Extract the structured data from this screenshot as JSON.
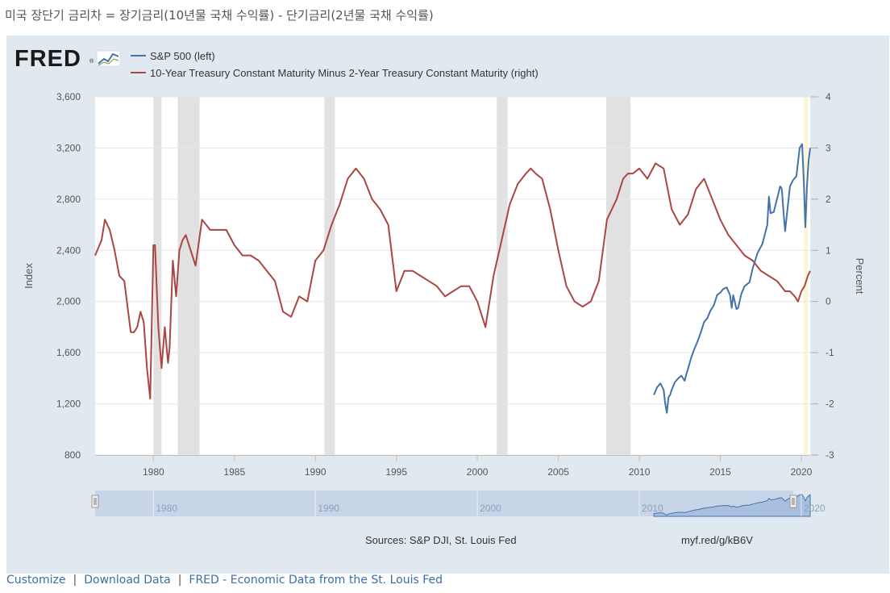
{
  "page": {
    "heading": "미국 장단기 금리차 = 장기금리(10년물 국채 수익률) - 단기금리(2년물 국채 수익률)"
  },
  "brand": {
    "logo_text": "FRED",
    "trademark": "®"
  },
  "colors": {
    "panel_bg": "#e1e9f0",
    "plot_bg": "#ffffff",
    "sp500": "#4572a7",
    "spread": "#aa4643",
    "recession": "#e1e1e1",
    "grid": "#e6e6e6",
    "link": "#3b6ea5",
    "navigator_fill": "#c8d5e8",
    "covid_shade": "#fbf6d7"
  },
  "chart_data": {
    "type": "line",
    "title": "",
    "legend": [
      {
        "name": "S&P 500 (left)",
        "color": "#4572a7"
      },
      {
        "name": "10-Year Treasury Constant Maturity Minus 2-Year Treasury Constant Maturity (right)",
        "color": "#aa4643"
      }
    ],
    "ylabel_left": "Index",
    "ylabel_right": "Percent",
    "ylim_left": [
      800,
      3600
    ],
    "ylim_right": [
      -3,
      4
    ],
    "xlim": [
      1976.4,
      2020.55
    ],
    "x_ticks": [
      1980,
      1985,
      1990,
      1995,
      2000,
      2005,
      2010,
      2015,
      2020
    ],
    "y_ticks_left": [
      "800",
      "1,200",
      "1,600",
      "2,000",
      "2,400",
      "2,800",
      "3,200",
      "3,600"
    ],
    "y_ticks_right": [
      "-3",
      "-2",
      "-1",
      "0",
      "1",
      "2",
      "3",
      "4"
    ],
    "recessions": [
      [
        1980.0,
        1980.5
      ],
      [
        1981.5,
        1982.85
      ],
      [
        1990.55,
        1991.2
      ],
      [
        2001.2,
        2001.87
      ],
      [
        2007.95,
        2009.45
      ],
      [
        2020.15,
        2020.4
      ]
    ],
    "series": [
      {
        "name": "S&P 500",
        "axis": "left",
        "x": [
          2010.9,
          2011.1,
          2011.3,
          2011.5,
          2011.6,
          2011.7,
          2011.8,
          2011.9,
          2012.0,
          2012.2,
          2012.4,
          2012.6,
          2012.8,
          2012.9,
          2013.0,
          2013.2,
          2013.4,
          2013.6,
          2013.8,
          2014.0,
          2014.2,
          2014.4,
          2014.6,
          2014.8,
          2015.0,
          2015.2,
          2015.4,
          2015.6,
          2015.7,
          2015.8,
          2016.0,
          2016.1,
          2016.3,
          2016.5,
          2016.8,
          2017.0,
          2017.3,
          2017.6,
          2017.9,
          2018.0,
          2018.1,
          2018.3,
          2018.5,
          2018.7,
          2018.8,
          2018.9,
          2019.0,
          2019.3,
          2019.5,
          2019.7,
          2019.9,
          2020.05,
          2020.15,
          2020.25,
          2020.35,
          2020.45,
          2020.55
        ],
        "y": [
          1270,
          1330,
          1360,
          1310,
          1200,
          1130,
          1250,
          1270,
          1310,
          1370,
          1400,
          1420,
          1380,
          1430,
          1470,
          1560,
          1630,
          1690,
          1760,
          1840,
          1870,
          1930,
          1970,
          2050,
          2070,
          2100,
          2110,
          2050,
          1950,
          2050,
          1940,
          1950,
          2060,
          2120,
          2150,
          2260,
          2380,
          2450,
          2600,
          2820,
          2690,
          2700,
          2800,
          2900,
          2880,
          2700,
          2550,
          2900,
          2950,
          2980,
          3200,
          3230,
          2950,
          2580,
          2900,
          3100,
          3200
        ]
      },
      {
        "name": "10Y-2Y Spread",
        "axis": "right",
        "x": [
          1976.4,
          1976.8,
          1977.0,
          1977.3,
          1977.6,
          1977.9,
          1978.2,
          1978.4,
          1978.6,
          1978.8,
          1979.0,
          1979.2,
          1979.4,
          1979.6,
          1979.8,
          1980.0,
          1980.1,
          1980.3,
          1980.5,
          1980.7,
          1980.9,
          1981.0,
          1981.2,
          1981.4,
          1981.6,
          1981.8,
          1982.0,
          1982.3,
          1982.6,
          1983.0,
          1983.5,
          1984.0,
          1984.5,
          1985.0,
          1985.5,
          1986.0,
          1986.5,
          1987.0,
          1987.5,
          1988.0,
          1988.5,
          1989.0,
          1989.5,
          1990.0,
          1990.5,
          1991.0,
          1991.5,
          1992.0,
          1992.5,
          1993.0,
          1993.5,
          1994.0,
          1994.5,
          1995.0,
          1995.5,
          1996.0,
          1996.5,
          1997.0,
          1997.5,
          1998.0,
          1998.5,
          1999.0,
          1999.5,
          2000.0,
          2000.5,
          2001.0,
          2001.5,
          2002.0,
          2002.5,
          2003.0,
          2003.3,
          2003.6,
          2004.0,
          2004.5,
          2005.0,
          2005.5,
          2006.0,
          2006.5,
          2007.0,
          2007.5,
          2008.0,
          2008.3,
          2008.6,
          2009.0,
          2009.3,
          2009.6,
          2010.0,
          2010.5,
          2011.0,
          2011.5,
          2012.0,
          2012.5,
          2013.0,
          2013.5,
          2014.0,
          2014.5,
          2015.0,
          2015.5,
          2016.0,
          2016.5,
          2017.0,
          2017.5,
          2018.0,
          2018.5,
          2019.0,
          2019.3,
          2019.6,
          2019.8,
          2020.0,
          2020.2,
          2020.4,
          2020.55
        ],
        "y": [
          0.9,
          1.2,
          1.6,
          1.4,
          1.0,
          0.5,
          0.4,
          -0.1,
          -0.6,
          -0.6,
          -0.5,
          -0.2,
          -0.4,
          -1.3,
          -1.9,
          1.1,
          1.1,
          -0.5,
          -1.3,
          -0.5,
          -1.2,
          -0.9,
          0.8,
          0.1,
          1.0,
          1.2,
          1.3,
          1.0,
          0.7,
          1.6,
          1.4,
          1.4,
          1.4,
          1.1,
          0.9,
          0.9,
          0.8,
          0.6,
          0.4,
          -0.2,
          -0.3,
          0.1,
          0.0,
          0.8,
          1.0,
          1.5,
          1.9,
          2.4,
          2.6,
          2.4,
          2.0,
          1.8,
          1.5,
          0.2,
          0.6,
          0.6,
          0.5,
          0.4,
          0.3,
          0.1,
          0.2,
          0.3,
          0.3,
          0.0,
          -0.5,
          0.5,
          1.2,
          1.9,
          2.3,
          2.5,
          2.6,
          2.5,
          2.4,
          1.8,
          1.0,
          0.3,
          0.0,
          -0.1,
          0.0,
          0.4,
          1.6,
          1.8,
          2.0,
          2.4,
          2.5,
          2.5,
          2.6,
          2.4,
          2.7,
          2.6,
          1.8,
          1.5,
          1.7,
          2.2,
          2.4,
          2.0,
          1.6,
          1.3,
          1.1,
          0.9,
          0.8,
          0.6,
          0.5,
          0.4,
          0.2,
          0.2,
          0.1,
          0.0,
          0.2,
          0.3,
          0.5,
          0.6
        ]
      }
    ]
  },
  "navigator": {
    "tick_labels": [
      "1980",
      "1990",
      "2000",
      "2010",
      "2020"
    ]
  },
  "sources": {
    "text": "Sources: S&P DJI, St. Louis Fed",
    "short_url": "myf.red/g/kB6V"
  },
  "footer": {
    "customize": "Customize",
    "download": "Download Data",
    "fred_link": "FRED - Economic Data from the St. Louis Fed",
    "separator": "|"
  }
}
